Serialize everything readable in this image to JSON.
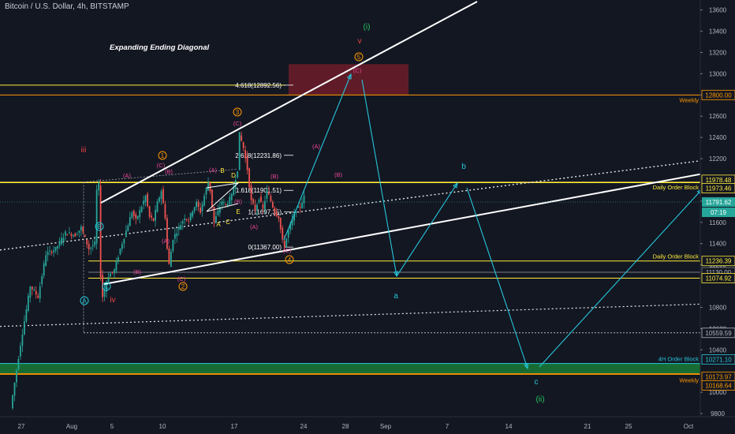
{
  "header": {
    "title": "Bitcoin / U.S. Dollar, 4h, BITSTAMP"
  },
  "colors": {
    "background": "#131722",
    "up_candle": "#26a69a",
    "down_candle": "#ef5350",
    "yellow": "#ffeb3b",
    "orange": "#ff9800",
    "teal": "#26c6da",
    "green_wave": "#22c55e",
    "red_wave": "#ef4444",
    "pink_wave": "#ec4899",
    "white": "#ffffff"
  },
  "chart_data": {
    "type": "candlestick",
    "title": "Expanding Ending Diagonal",
    "y_range": [
      9760,
      13700
    ],
    "y_ticks": [
      9800,
      10000,
      10400,
      10600,
      10800,
      11200,
      11400,
      11600,
      11800,
      12200,
      12400,
      12600,
      12800,
      13000,
      13200,
      13400,
      13600
    ],
    "x_ticks": [
      "27",
      "Aug",
      "5",
      "10",
      "17",
      "24",
      "28",
      "Sep",
      "7",
      "14",
      "21",
      "25",
      "Oct"
    ],
    "price_path": [
      [
        0,
        9850
      ],
      [
        5,
        10450
      ],
      [
        10,
        11000
      ],
      [
        14,
        10900
      ],
      [
        18,
        11300
      ],
      [
        23,
        11350
      ],
      [
        28,
        11500
      ],
      [
        33,
        11480
      ],
      [
        36,
        11550
      ],
      [
        40,
        11350
      ],
      [
        43,
        11400
      ],
      [
        44,
        11900
      ],
      [
        45,
        11950
      ],
      [
        46,
        11100
      ],
      [
        47,
        10900
      ],
      [
        50,
        11100
      ],
      [
        53,
        11150
      ],
      [
        56,
        11350
      ],
      [
        59,
        11520
      ],
      [
        62,
        11700
      ],
      [
        64,
        11620
      ],
      [
        67,
        11750
      ],
      [
        69,
        11850
      ],
      [
        71,
        11650
      ],
      [
        73,
        11620
      ],
      [
        75,
        11780
      ],
      [
        77,
        11900
      ],
      [
        79,
        11650
      ],
      [
        80,
        11350
      ],
      [
        81,
        11200
      ],
      [
        83,
        11450
      ],
      [
        86,
        11550
      ],
      [
        89,
        11650
      ],
      [
        91,
        11620
      ],
      [
        93,
        11720
      ],
      [
        95,
        11780
      ],
      [
        97,
        11700
      ],
      [
        99,
        11850
      ],
      [
        101,
        11980
      ],
      [
        102,
        11900
      ],
      [
        104,
        11600
      ],
      [
        106,
        11700
      ],
      [
        108,
        11800
      ],
      [
        110,
        11760
      ],
      [
        113,
        11850
      ],
      [
        116,
        12100
      ],
      [
        117,
        12430
      ],
      [
        119,
        12300
      ],
      [
        121,
        12100
      ],
      [
        123,
        11800
      ],
      [
        125,
        11720
      ],
      [
        127,
        11830
      ],
      [
        129,
        11720
      ],
      [
        131,
        11900
      ],
      [
        133,
        11800
      ],
      [
        135,
        11700
      ],
      [
        137,
        11650
      ],
      [
        139,
        11420
      ],
      [
        140,
        11380
      ],
      [
        142,
        11520
      ],
      [
        144,
        11620
      ],
      [
        146,
        11720
      ],
      [
        148,
        11750
      ],
      [
        150,
        11840
      ]
    ],
    "price_levels": [
      {
        "label": "Weekly",
        "price": 12800.0,
        "value_label": "12800.00",
        "color": "#ff9800",
        "label_color": "#ff9800"
      },
      {
        "label": "Daily Order Block",
        "price": 11978.48,
        "value_label": "11978.48",
        "color": "#ffeb3b",
        "label_color": "#ffeb3b"
      },
      {
        "label": "",
        "price": 11973.46,
        "value_label": "11973.46",
        "color": "#ffeb3b",
        "label_color": "#ffeb3b"
      },
      {
        "label": "Daily Order Block",
        "price": 11236.39,
        "value_label": "11236.39",
        "color": "#ffeb3b",
        "label_color": "#ffeb3b"
      },
      {
        "label": "",
        "price": 11130.0,
        "value_label": "11130.00",
        "color": "#787b86",
        "label_color": "#b2b5be"
      },
      {
        "label": "",
        "price": 11074.92,
        "value_label": "11074.92",
        "color": "#ffeb3b",
        "label_color": "#ffeb3b"
      },
      {
        "label": "",
        "price": 10559.59,
        "value_label": "10559.59",
        "color": "#b2b5be",
        "label_color": "#b2b5be"
      },
      {
        "label": "4H Order Block",
        "price": 10271.1,
        "value_label": "10271.10",
        "color": "#26c6da",
        "label_color": "#26c6da"
      },
      {
        "label": "",
        "price": 10173.97,
        "value_label": "10173.97",
        "color": "#ff9800",
        "label_color": "#ff9800"
      },
      {
        "label": "Weekly",
        "price": 10168.64,
        "value_label": "10168.64",
        "color": "#ff9800",
        "label_color": "#ff9800"
      }
    ],
    "current_price": {
      "value_label": "11791.62",
      "price": 11791.62,
      "countdown": "07:19"
    },
    "fib_levels": [
      {
        "label": "4.618(12892.56)",
        "price": 12892.56
      },
      {
        "label": "2.618(12231.86)",
        "price": 12231.86
      },
      {
        "label": "1.618(11901.51)",
        "price": 11901.51
      },
      {
        "label": "1(11697.35)",
        "price": 11697.35
      },
      {
        "label": "0(11367.00)",
        "price": 11367.0
      }
    ],
    "wave_labels": [
      {
        "text": "(i)",
        "color": "#22c55e"
      },
      {
        "text": "v",
        "color": "#ef4444"
      },
      {
        "text": "5",
        "color": "#ff9800"
      },
      {
        "text": "(C)",
        "color": "#ec4899"
      },
      {
        "text": "iii",
        "color": "#ef4444"
      },
      {
        "text": "iv",
        "color": "#ef4444"
      },
      {
        "text": "3",
        "color": "#ff9800"
      },
      {
        "text": "(C)",
        "color": "#ec4899"
      },
      {
        "text": "1",
        "color": "#ff9800"
      },
      {
        "text": "(C)",
        "color": "#ec4899"
      },
      {
        "text": "(B)",
        "color": "#ec4899"
      },
      {
        "text": "(A)",
        "color": "#ec4899"
      },
      {
        "text": "(A)",
        "color": "#ec4899"
      },
      {
        "text": "(B)",
        "color": "#ec4899"
      },
      {
        "text": "(A)",
        "color": "#ec4899"
      },
      {
        "text": "(B)",
        "color": "#ec4899"
      },
      {
        "text": "(A)",
        "color": "#ec4899"
      },
      {
        "text": "(B)",
        "color": "#ec4899"
      },
      {
        "text": "(A)",
        "color": "#ec4899"
      },
      {
        "text": "(B)",
        "color": "#ec4899"
      },
      {
        "text": "(C)",
        "color": "#ec4899"
      },
      {
        "text": "(C)",
        "color": "#ec4899"
      },
      {
        "text": "B",
        "color": "#ffeb3b"
      },
      {
        "text": "D",
        "color": "#ffeb3b"
      },
      {
        "text": "A",
        "color": "#ffeb3b"
      },
      {
        "text": "C",
        "color": "#ffeb3b"
      },
      {
        "text": "E",
        "color": "#ffeb3b"
      },
      {
        "text": "2",
        "color": "#ff9800"
      },
      {
        "text": "4",
        "color": "#ff9800"
      },
      {
        "text": "B",
        "color": "#26c6da"
      },
      {
        "text": "A",
        "color": "#26c6da"
      },
      {
        "text": "C",
        "color": "#26c6da"
      },
      {
        "text": "a",
        "color": "#26c6da"
      },
      {
        "text": "b",
        "color": "#26c6da"
      },
      {
        "text": "c",
        "color": "#26c6da"
      },
      {
        "text": "(ii)",
        "color": "#22c55e"
      }
    ]
  }
}
